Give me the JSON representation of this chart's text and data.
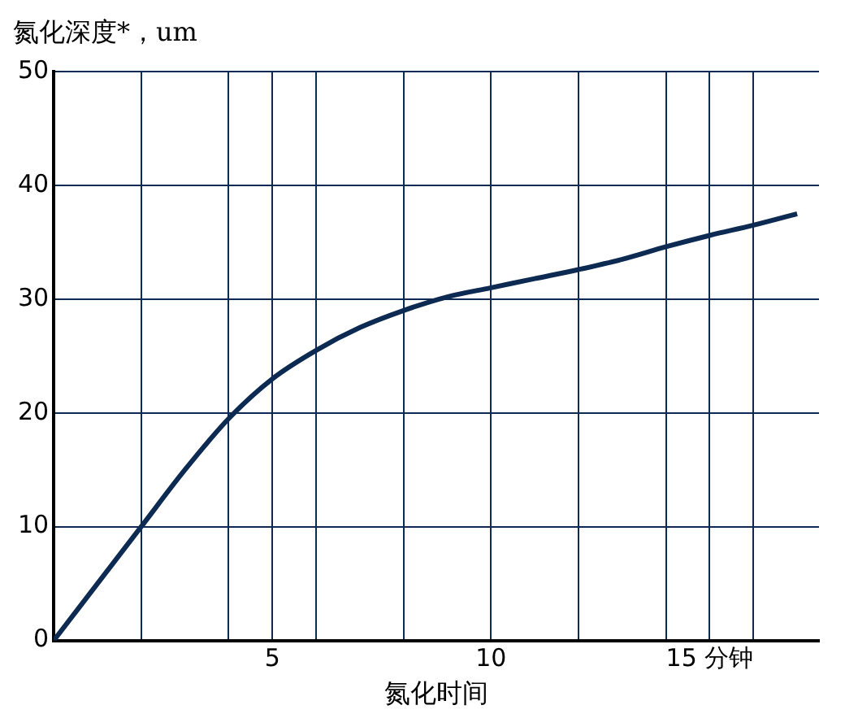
{
  "chart_data": {
    "type": "line",
    "ylabel": "氮化深度*，um",
    "xlabel": "氮化时间",
    "x": [
      0,
      1,
      2,
      3,
      4,
      5,
      6,
      7,
      8,
      9,
      10,
      11,
      12,
      13,
      14,
      15,
      16,
      17
    ],
    "series": [
      {
        "color": "#0d2b52",
        "values": [
          0,
          5,
          10,
          15,
          19.5,
          23,
          25.5,
          27.5,
          29,
          30.2,
          31,
          31.8,
          32.6,
          33.5,
          34.6,
          35.6,
          36.5,
          37.5
        ]
      }
    ],
    "xlim": [
      0,
      17.5
    ],
    "xticks": [
      {
        "value": 2,
        "label": null
      },
      {
        "value": 4,
        "label": null
      },
      5,
      {
        "value": 6,
        "label": null
      },
      {
        "value": 8,
        "label": null
      },
      10,
      {
        "value": 12,
        "label": null
      },
      {
        "value": 14,
        "label": null
      },
      {
        "value": 15,
        "label": "15 分钟"
      },
      {
        "value": 16,
        "label": null
      }
    ],
    "ylim": [
      0,
      50
    ],
    "yticks": [
      0,
      10,
      20,
      30,
      40,
      50
    ],
    "grid": true,
    "legend": false,
    "marker": "none",
    "line_style": "solid"
  }
}
